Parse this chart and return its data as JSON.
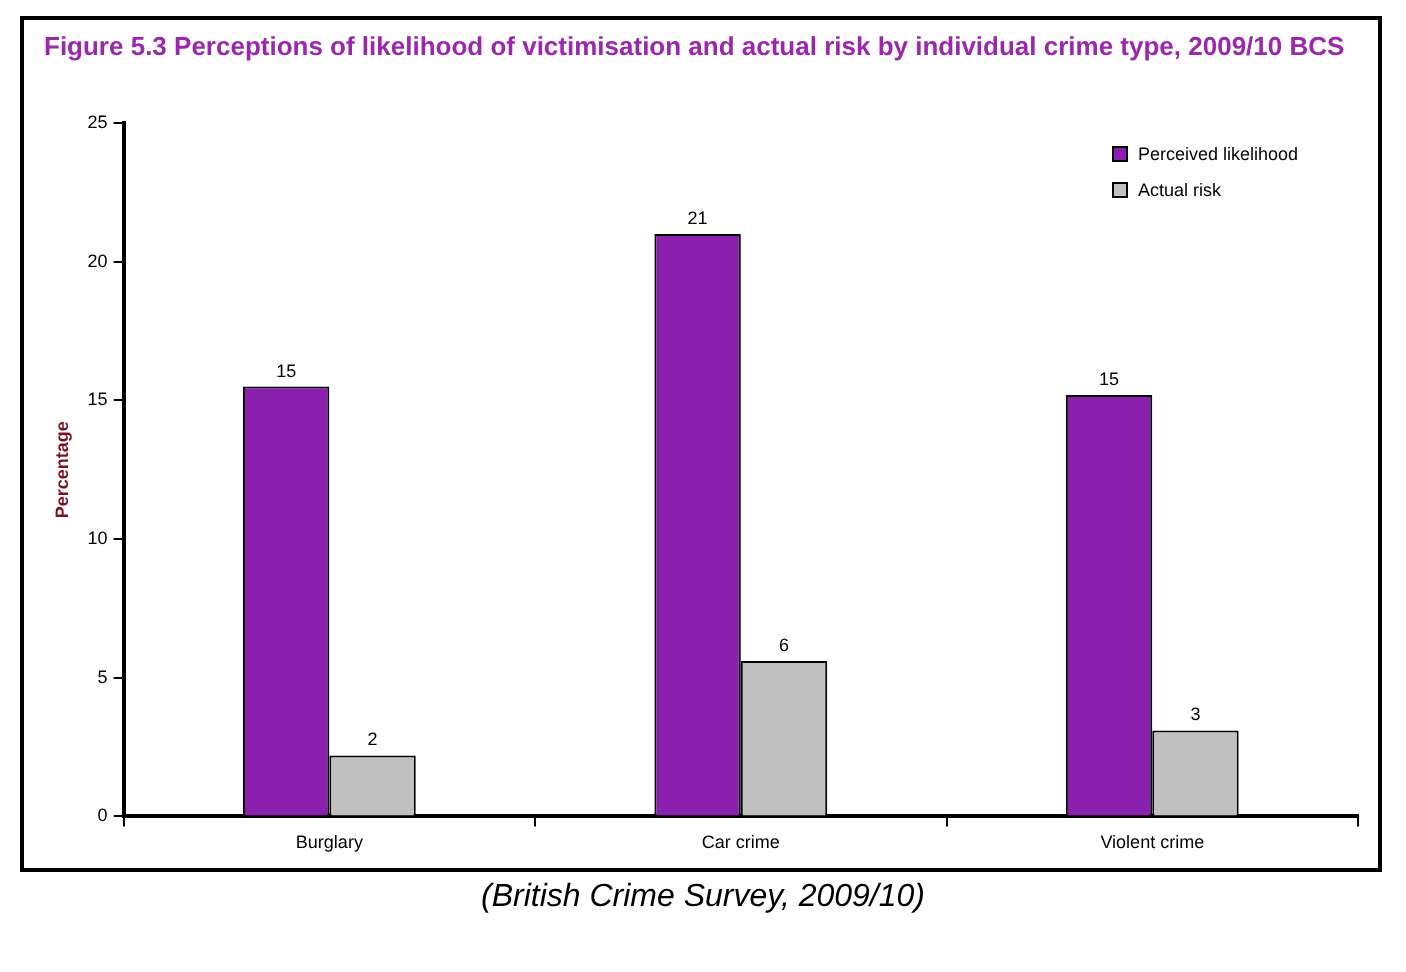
{
  "chart_data": {
    "type": "bar",
    "title": "Figure 5.3 Perceptions of likelihood of victimisation and actual risk by individual crime type, 2009/10 BCS",
    "ylabel": "Percentage",
    "categories": [
      "Burglary",
      "Car crime",
      "Violent crime"
    ],
    "series": [
      {
        "name": "Perceived likelihood",
        "color": "#8b1fae",
        "values": [
          15.5,
          21,
          15.2
        ],
        "value_labels": [
          "15",
          "21",
          "15"
        ]
      },
      {
        "name": "Actual risk",
        "color": "#c0c0c0",
        "values": [
          2.2,
          5.6,
          3.1
        ],
        "value_labels": [
          "2",
          "6",
          "3"
        ]
      }
    ],
    "ylim": [
      0,
      25
    ],
    "yticks": [
      0,
      5,
      10,
      15,
      20,
      25
    ],
    "grid": false,
    "legend": "top right",
    "annotations": [
      "(British Crime Survey, 2009/10)"
    ]
  }
}
